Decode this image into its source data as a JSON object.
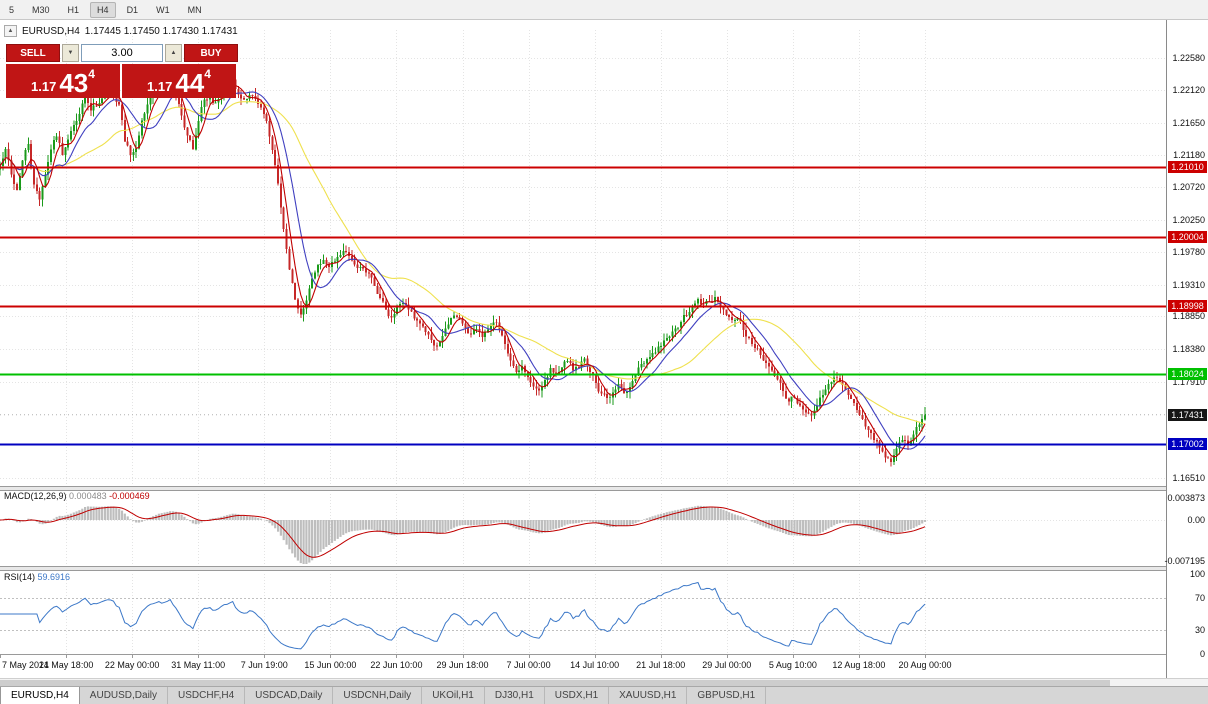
{
  "colors": {
    "grid": "#E4E4E4",
    "candle_up": "#1A9A1A",
    "candle_down": "#C62828",
    "panel_red": "#C01515",
    "axis_text": "#111111"
  },
  "toolbar": {
    "timeframes": [
      "5",
      "M30",
      "H1",
      "H4",
      "D1",
      "W1",
      "MN"
    ],
    "active": "H4"
  },
  "chart_header": {
    "collapse_icon": "▲",
    "symbol": "EURUSD,H4",
    "ohlc": "1.17445 1.17450 1.17430 1.17431"
  },
  "trade_panel": {
    "sell_button": "SELL",
    "buy_button": "BUY",
    "lot_value": "3.00",
    "spin_down_icon": "▼",
    "spin_up_icon": "▲",
    "sell_price": {
      "prefix": "1.17",
      "big": "43",
      "sup": "4"
    },
    "buy_price": {
      "prefix": "1.17",
      "big": "44",
      "sup": "4"
    }
  },
  "tabs": [
    {
      "label": "EURUSD,H4",
      "active": true
    },
    {
      "label": "AUDUSD,Daily",
      "active": false
    },
    {
      "label": "USDCHF,H4",
      "active": false
    },
    {
      "label": "USDCAD,Daily",
      "active": false
    },
    {
      "label": "USDCNH,Daily",
      "active": false
    },
    {
      "label": "UKOil,H1",
      "active": false
    },
    {
      "label": "DJ30,H1",
      "active": false
    },
    {
      "label": "USDX,H1",
      "active": false
    },
    {
      "label": "XAUUSD,H1",
      "active": false
    },
    {
      "label": "GBPUSD,H1",
      "active": false
    }
  ],
  "chart_data": {
    "type": "candlestick",
    "symbol": "EURUSD",
    "timeframe": "H4",
    "ohlc_current": {
      "open": "1.17445",
      "high": "1.17450",
      "low": "1.17430",
      "close": "1.17431"
    },
    "visible_price_range": [
      1.164,
      1.2299
    ],
    "price_axis_ticks": [
      {
        "label": "1.22580",
        "value": 1.2258
      },
      {
        "label": "1.22120",
        "value": 1.2212
      },
      {
        "label": "1.21650",
        "value": 1.2165
      },
      {
        "label": "1.21180",
        "value": 1.2118
      },
      {
        "label": "1.20720",
        "value": 1.2072
      },
      {
        "label": "1.20250",
        "value": 1.2025
      },
      {
        "label": "1.19780",
        "value": 1.1978
      },
      {
        "label": "1.19310",
        "value": 1.1931
      },
      {
        "label": "1.18850",
        "value": 1.1885
      },
      {
        "label": "1.18380",
        "value": 1.1838
      },
      {
        "label": "1.17910",
        "value": 1.1791
      },
      {
        "label": "1.16510",
        "value": 1.1651
      }
    ],
    "levels": [
      {
        "label": "1.21010",
        "value": 1.2101,
        "hex": "#CC0000",
        "kind": "resistance"
      },
      {
        "label": "1.20004",
        "value": 1.20004,
        "hex": "#CC0000",
        "kind": "resistance"
      },
      {
        "label": "1.18998",
        "value": 1.18998,
        "hex": "#CC0000",
        "kind": "resistance"
      },
      {
        "label": "1.18024",
        "value": 1.18024,
        "hex": "#00C000",
        "kind": "support"
      },
      {
        "label": "1.17002",
        "value": 1.17002,
        "hex": "#0000C0",
        "kind": "support"
      }
    ],
    "current_price": {
      "label": "1.17431",
      "value": 1.17431,
      "hex": "#151515"
    },
    "moving_averages": [
      {
        "period": 34,
        "hex": "#EFE14E"
      },
      {
        "period": 12,
        "hex": "#4040C0"
      },
      {
        "period": 5,
        "hex": "#C00000"
      }
    ],
    "x_labels": [
      "7 May 2021",
      "14 May 18:00",
      "22 May 00:00",
      "31 May 11:00",
      "7 Jun 19:00",
      "15 Jun 00:00",
      "22 Jun 10:00",
      "29 Jun 18:00",
      "7 Jul 00:00",
      "14 Jul 10:00",
      "21 Jul 18:00",
      "29 Jul 00:00",
      "5 Aug 10:00",
      "12 Aug 18:00",
      "20 Aug 00:00"
    ],
    "price_path": [
      1.2104,
      1.2126,
      1.209,
      1.2068,
      1.2111,
      1.2133,
      1.2075,
      1.2054,
      1.209,
      1.2126,
      1.2147,
      1.2118,
      1.214,
      1.2162,
      1.2176,
      1.2205,
      1.2183,
      1.219,
      1.2198,
      1.2209,
      1.2205,
      1.219,
      1.214,
      1.2118,
      1.2126,
      1.2169,
      1.219,
      1.2205,
      1.2212,
      1.2215,
      1.2226,
      1.2205,
      1.2176,
      1.2147,
      1.2126,
      1.2169,
      1.2198,
      1.22,
      1.2195,
      1.2209,
      1.2215,
      1.2226,
      1.2205,
      1.22,
      1.2205,
      1.2198,
      1.2186,
      1.2169,
      1.2126,
      1.2075,
      1.201,
      1.1953,
      1.191,
      1.1888,
      1.191,
      1.1938,
      1.196,
      1.1967,
      1.1956,
      1.1964,
      1.1974,
      1.1979,
      1.1964,
      1.1953,
      1.1956,
      1.1946,
      1.1931,
      1.191,
      1.1895,
      1.1884,
      1.1898,
      1.1905,
      1.1895,
      1.1884,
      1.1874,
      1.1863,
      1.1852,
      1.184,
      1.1855,
      1.1874,
      1.1888,
      1.1881,
      1.1869,
      1.1859,
      1.1866,
      1.1855,
      1.1866,
      1.1878,
      1.1866,
      1.1845,
      1.1823,
      1.1806,
      1.1812,
      1.1797,
      1.1783,
      1.1777,
      1.1794,
      1.1809,
      1.1802,
      1.1812,
      1.182,
      1.1809,
      1.1812,
      1.1823,
      1.1806,
      1.1787,
      1.1773,
      1.1766,
      1.1777,
      1.1787,
      1.1773,
      1.1783,
      1.1802,
      1.1816,
      1.1823,
      1.183,
      1.184,
      1.1852,
      1.1855,
      1.1866,
      1.1878,
      1.1888,
      1.1898,
      1.191,
      1.1902,
      1.1907,
      1.1912,
      1.1898,
      1.1888,
      1.1881,
      1.1884,
      1.1866,
      1.1852,
      1.184,
      1.183,
      1.182,
      1.1809,
      1.1794,
      1.1777,
      1.1763,
      1.1768,
      1.1758,
      1.1748,
      1.174,
      1.1758,
      1.1773,
      1.1787,
      1.1797,
      1.1791,
      1.178,
      1.1766,
      1.1748,
      1.1737,
      1.1722,
      1.1708,
      1.1694,
      1.1682,
      1.1676,
      1.1694,
      1.1708,
      1.1701,
      1.1715,
      1.173,
      1.1743
    ],
    "macd": {
      "label": "MACD(12,26,9)",
      "value_main": "0.000483",
      "value_signal": "-0.000469",
      "fast": 12,
      "slow": 26,
      "signal": 9,
      "hist_hex": "#BEBEBE",
      "signal_hex": "#C00000",
      "axis": [
        {
          "label": "0.003873",
          "value": 0.003873
        },
        {
          "label": "0.00",
          "value": 0
        },
        {
          "label": "-0.007195",
          "value": -0.007195
        }
      ]
    },
    "rsi": {
      "label": "RSI(14)",
      "value": "59.6916",
      "period": 14,
      "line_hex": "#3C78C8",
      "levels": [
        70,
        30
      ],
      "axis": [
        {
          "label": "100",
          "value": 100
        },
        {
          "label": "70",
          "value": 70
        },
        {
          "label": "30",
          "value": 30
        },
        {
          "label": "0",
          "value": 0
        }
      ]
    }
  }
}
